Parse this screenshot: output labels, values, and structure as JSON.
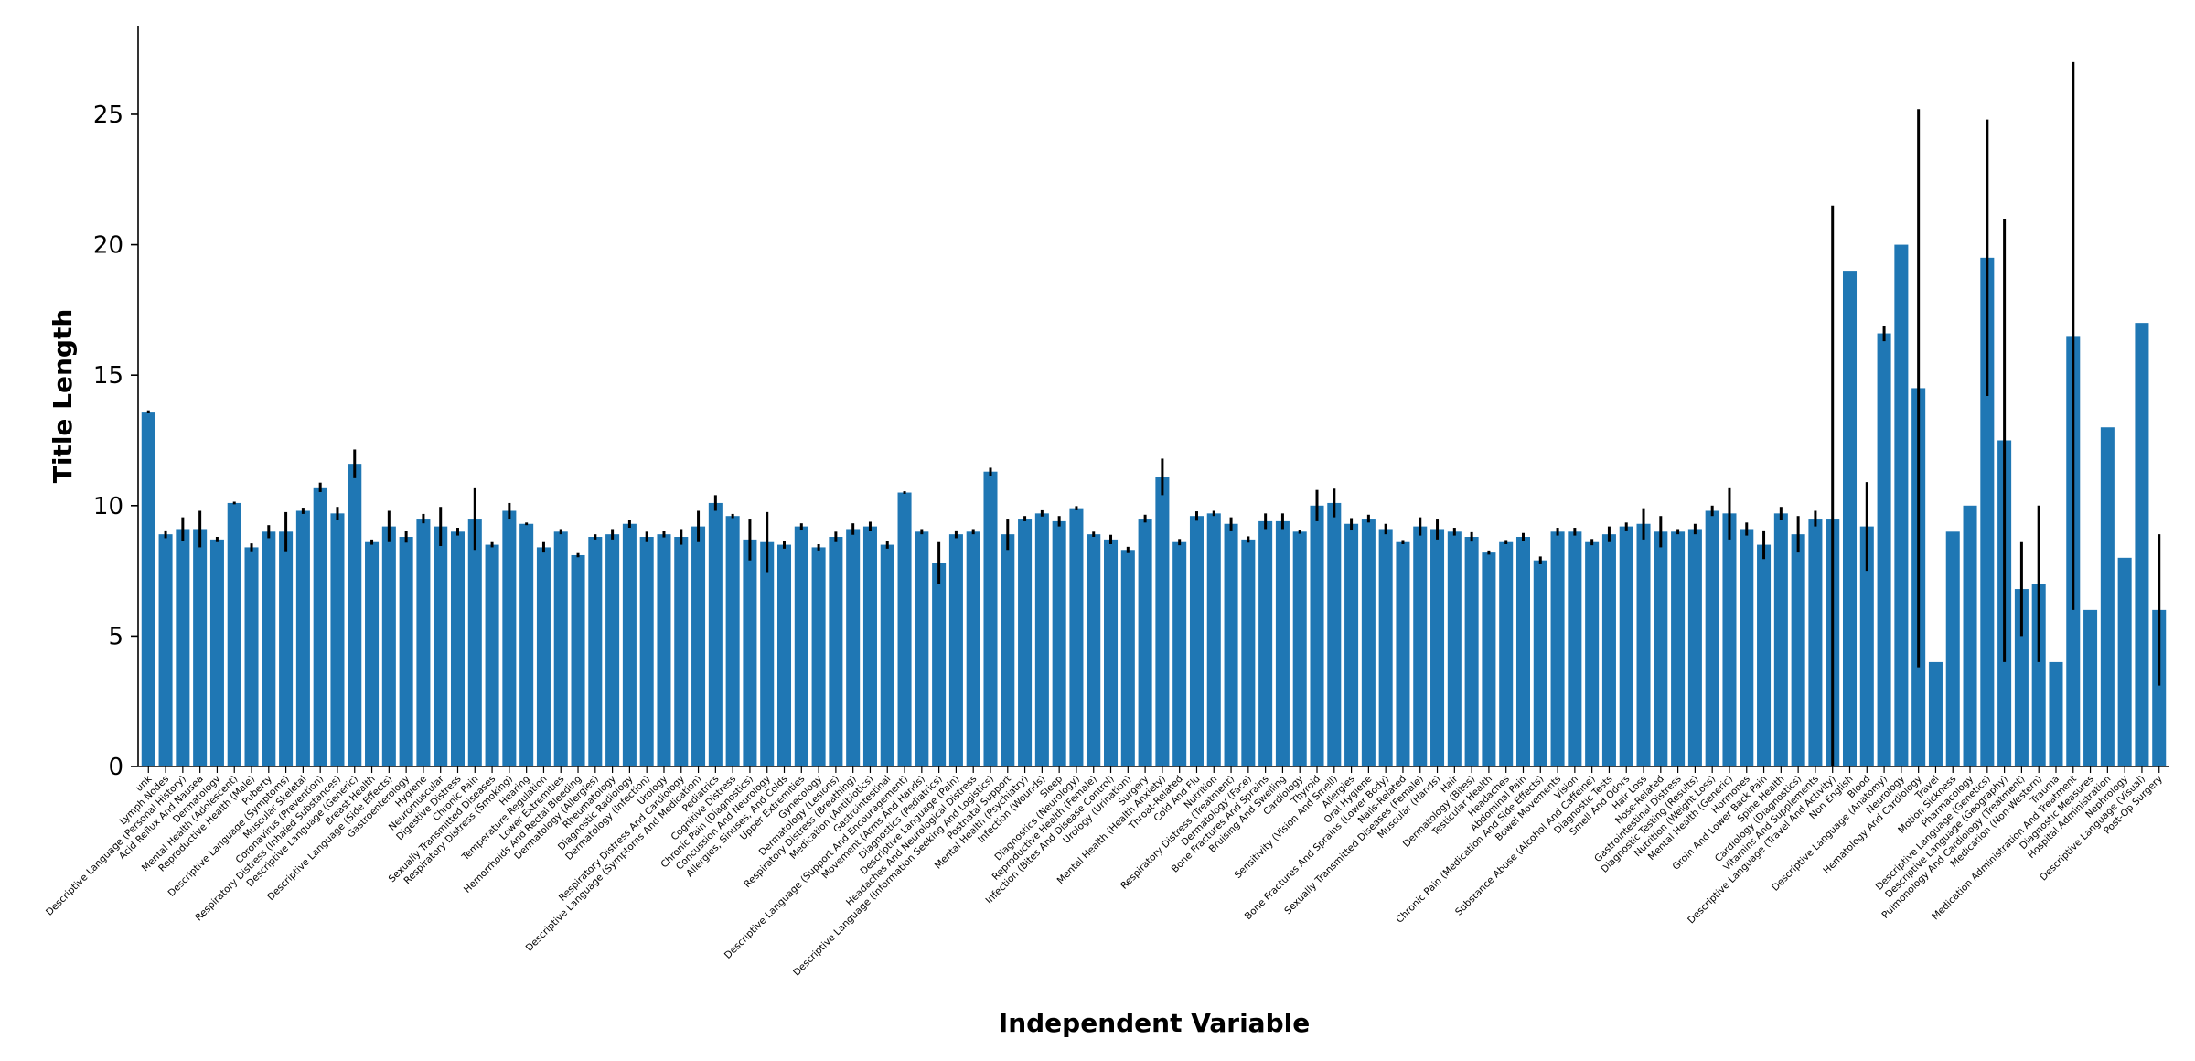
{
  "chart_data": {
    "type": "bar",
    "title": "",
    "xlabel": "Independent Variable",
    "ylabel": "Title Length",
    "ylim": [
      0,
      28.4
    ],
    "yticks": [
      0,
      5,
      10,
      15,
      20,
      25
    ],
    "grid": false,
    "legend": "none",
    "bar_color": "#1f77b4",
    "error_bar_color": "#000000",
    "categories": [
      "unk",
      "Lymph Nodes",
      "Descriptive Language (Personal History)",
      "Acid Reflux And Nausea",
      "Dermatology",
      "Mental Health (Adolescent)",
      "Reproductive Health (Male)",
      "Puberty",
      "Descriptive Language (Symptoms)",
      "Muscular Skeletal",
      "Coronavirus (Prevention)",
      "Respiratory Distress (Inhaled Substances)",
      "Descriptive Language (Generic)",
      "Breast Health",
      "Descriptive Language (Side Effects)",
      "Gastroenterology",
      "Hygiene",
      "Neuromuscular",
      "Digestive Distress",
      "Chronic Pain",
      "Sexually Transmitted Diseases",
      "Respiratory Distress (Smoking)",
      "Hearing",
      "Temperature Regulation",
      "Lower Extremities",
      "Hemorrhoids And Rectal Bleeding",
      "Dermatology (Allergies)",
      "Rheumatology",
      "Diagnostic Radiology",
      "Dermatology (Infection)",
      "Urology",
      "Respiratory Distress And Cardiology",
      "Descriptive Language (Symptoms And Medication)",
      "Pediatrics",
      "Cognitive Distress",
      "Chronic Pain (Diagnostics)",
      "Concussion And Neurology",
      "Allergies, Sinuses, And Colds",
      "Upper Extremities",
      "Gynecology",
      "Dermatology (Lesions)",
      "Respiratory Distress (Breathing)",
      "Medication (Antibiotics)",
      "Gastrointestinal",
      "Descriptive Language (Support And Encouragement)",
      "Movement (Arms And Hands)",
      "Diagnostics (Pediatrics)",
      "Descriptive Language (Pain)",
      "Headaches And Neurological Distress",
      "Descriptive Language (Information Seeking And Logistics)",
      "Postnatal Support",
      "Mental Health (Psychiatry)",
      "Infection (Wounds)",
      "Sleep",
      "Diagnostics (Neurology)",
      "Reproductive Health (Female)",
      "Infection (Bites And Disease Control)",
      "Urology (Urination)",
      "Surgery",
      "Mental Health (Health Anxiety)",
      "Throat-Related",
      "Cold And Flu",
      "Nutrition",
      "Respiratory Distress (Treatment)",
      "Dermatology (Face)",
      "Bone Fractures And Sprains",
      "Bruising And Swelling",
      "Cardiology",
      "Thyroid",
      "Sensitivity (Vision And Smell)",
      "Allergies",
      "Oral Hygiene",
      "Bone Fractures And Sprains (Lower Body)",
      "Nails-Related",
      "Sexually Transmitted Diseases (Female)",
      "Muscular (Hands)",
      "Hair",
      "Dermatology (Bites)",
      "Testicular Health",
      "Headaches",
      "Abdominal Pain",
      "Chronic Pain (Medication And Side Effects)",
      "Bowel Movements",
      "Vision",
      "Substance Abuse (Alcohol And Caffeine)",
      "Diagnostic Tests",
      "Smell And Odors",
      "Hair Loss",
      "Nose-Related",
      "Gastrointestinal Distress",
      "Diagnostic Testing (Results)",
      "Nutrition (Weight Loss)",
      "Mental Health (Generic)",
      "Hormones",
      "Groin And Lower Back Pain",
      "Spine Health",
      "Cardiology (Diagnostics)",
      "Vitamins And Supplements",
      "Descriptive Language (Travel And Activity)",
      "Non English",
      "Blood",
      "Descriptive Language (Anatomy)",
      "Neurology",
      "Hematology And Cardiology",
      "Travel",
      "Motion Sickness",
      "Pharmacology",
      "Descriptive Language (Genetics)",
      "Descriptive Language (Geography)",
      "Pulmonology And Cardiology (Treatment)",
      "Medication (Non-Western)",
      "Trauma",
      "Medication Administration And Treatment",
      "Diagnostic Measures",
      "Hospital Administration",
      "Nephrology",
      "Descriptive Language (Visual)",
      "Post-Op Surgery"
    ],
    "values": [
      13.6,
      8.9,
      9.1,
      9.1,
      8.7,
      10.1,
      8.4,
      9.0,
      9.0,
      9.8,
      10.7,
      9.7,
      11.6,
      8.6,
      9.2,
      8.8,
      9.5,
      9.2,
      9.0,
      9.5,
      8.5,
      9.8,
      9.3,
      8.4,
      9.0,
      8.1,
      8.8,
      8.9,
      9.3,
      8.8,
      8.9,
      8.8,
      9.2,
      10.1,
      9.6,
      8.7,
      8.6,
      8.5,
      9.2,
      8.4,
      8.8,
      9.1,
      9.2,
      8.5,
      10.5,
      9.0,
      7.8,
      8.9,
      9.0,
      11.3,
      8.9,
      9.5,
      9.7,
      9.4,
      9.9,
      8.9,
      8.7,
      8.3,
      9.5,
      11.1,
      8.6,
      9.6,
      9.7,
      9.3,
      8.7,
      9.4,
      9.4,
      9.0,
      10.0,
      10.1,
      9.3,
      9.5,
      9.1,
      8.6,
      9.2,
      9.1,
      9.0,
      8.8,
      8.2,
      8.6,
      8.8,
      7.9,
      9.0,
      9.0,
      8.6,
      8.9,
      9.2,
      9.3,
      9.0,
      9.0,
      9.1,
      9.8,
      9.7,
      9.1,
      8.5,
      9.7,
      8.9,
      9.5,
      9.5,
      19.0,
      9.2,
      16.6,
      20.0,
      14.5,
      4.0,
      9.0,
      10.0,
      19.5,
      12.5,
      6.8,
      7.0,
      4.0,
      16.5,
      6.0,
      13.0,
      8.0,
      17.0,
      6.0
    ],
    "errors": [
      0.05,
      0.15,
      0.45,
      0.7,
      0.1,
      0.05,
      0.15,
      0.25,
      0.75,
      0.12,
      0.18,
      0.25,
      0.55,
      0.1,
      0.6,
      0.22,
      0.18,
      0.75,
      0.15,
      1.2,
      0.1,
      0.3,
      0.05,
      0.2,
      0.1,
      0.08,
      0.1,
      0.2,
      0.15,
      0.2,
      0.12,
      0.3,
      0.6,
      0.3,
      0.08,
      0.8,
      1.15,
      0.15,
      0.12,
      0.12,
      0.2,
      0.22,
      0.18,
      0.15,
      0.05,
      0.1,
      0.8,
      0.15,
      0.1,
      0.15,
      0.6,
      0.1,
      0.12,
      0.2,
      0.08,
      0.1,
      0.18,
      0.12,
      0.15,
      0.7,
      0.12,
      0.18,
      0.1,
      0.25,
      0.12,
      0.3,
      0.3,
      0.08,
      0.6,
      0.55,
      0.22,
      0.15,
      0.2,
      0.08,
      0.35,
      0.4,
      0.15,
      0.18,
      0.08,
      0.08,
      0.15,
      0.15,
      0.15,
      0.15,
      0.12,
      0.3,
      0.15,
      0.6,
      0.6,
      0.1,
      0.2,
      0.2,
      1.0,
      0.25,
      0.55,
      0.25,
      0.7,
      0.3,
      12.0,
      0.0,
      1.7,
      0.3,
      0.0,
      10.7,
      0.0,
      0.0,
      0.0,
      5.3,
      8.5,
      1.8,
      3.0,
      0.0,
      10.5,
      0.0,
      0.0,
      0.0,
      0.0,
      2.9
    ]
  }
}
